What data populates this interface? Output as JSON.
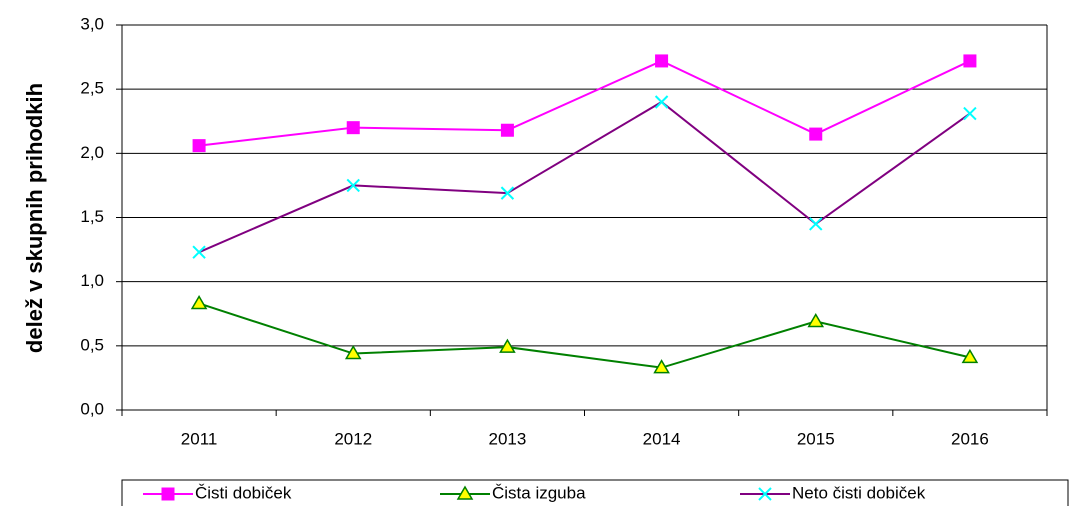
{
  "chart_data": {
    "type": "line",
    "y_label": "delež v skupnih prihodkih",
    "categories": [
      "2011",
      "2012",
      "2013",
      "2014",
      "2015",
      "2016"
    ],
    "series": [
      {
        "name": "Čisti dobiček",
        "color": "#ff00ff",
        "marker": "square",
        "marker_color": "#ff00ff",
        "values": [
          2.06,
          2.2,
          2.18,
          2.72,
          2.15,
          2.72
        ]
      },
      {
        "name": "Čista izguba",
        "color": "#008000",
        "marker": "triangle",
        "marker_color": "#ffff00",
        "values": [
          0.83,
          0.44,
          0.49,
          0.33,
          0.69,
          0.41
        ]
      },
      {
        "name": "Neto čisti dobiček",
        "color": "#800080",
        "marker": "x",
        "marker_color": "#00ffff",
        "values": [
          1.23,
          1.75,
          1.69,
          2.4,
          1.45,
          2.31
        ]
      }
    ],
    "ylim": [
      0,
      3
    ],
    "yticks": [
      {
        "value": 0,
        "label": "0,0"
      },
      {
        "value": 0.5,
        "label": "0,5"
      },
      {
        "value": 1,
        "label": "1,0"
      },
      {
        "value": 1.5,
        "label": "1,5"
      },
      {
        "value": 2,
        "label": "2,0"
      },
      {
        "value": 2.5,
        "label": "2,5"
      },
      {
        "value": 3,
        "label": "3,0"
      }
    ],
    "grid": true
  }
}
